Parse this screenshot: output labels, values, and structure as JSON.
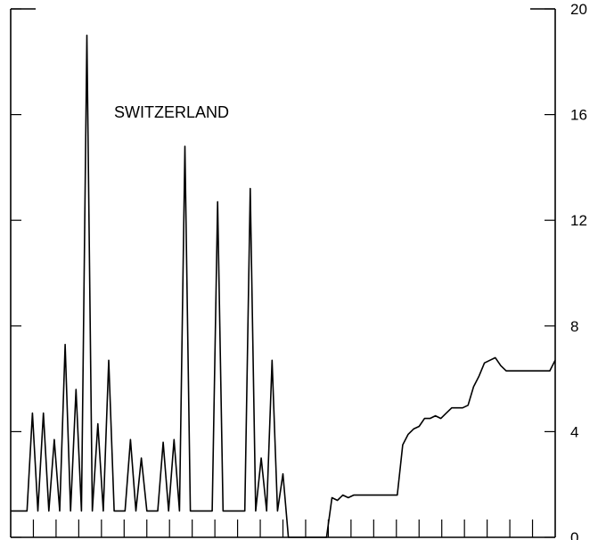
{
  "chart_data": {
    "type": "line",
    "annotation": "SWITZERLAND",
    "xlabel": "",
    "ylabel": "",
    "ylim": [
      0,
      20
    ],
    "yticks": [
      0,
      4,
      8,
      12,
      16,
      20
    ],
    "ytick_labels": [
      "0",
      "4",
      "8",
      "12",
      "16",
      "20"
    ],
    "y_axis_side": "right",
    "x_tick_count": 24,
    "grid": false,
    "series": [
      {
        "x": [
          0,
          3,
          4,
          5,
          6,
          7,
          8,
          9,
          10,
          11,
          12,
          13,
          14,
          15,
          16,
          17,
          18,
          19,
          20,
          21,
          22,
          23,
          24,
          25,
          26,
          27,
          28,
          29,
          30,
          31,
          32,
          33,
          34,
          35,
          36,
          37,
          38,
          39,
          40,
          41,
          42,
          43,
          44,
          45,
          46,
          47,
          48,
          49,
          50,
          51,
          52,
          53,
          54,
          55,
          56,
          57,
          58,
          59,
          60,
          61,
          62,
          63,
          64,
          65,
          66,
          67,
          68,
          69,
          70,
          71,
          72,
          73,
          74,
          75,
          76,
          77,
          78,
          79,
          80,
          81,
          82,
          83,
          84,
          85,
          86,
          87,
          88,
          89,
          90,
          91,
          92,
          93,
          94,
          95,
          96,
          97,
          98,
          99,
          100
        ],
        "y": [
          1.0,
          1.0,
          4.7,
          1.0,
          4.7,
          1.0,
          3.7,
          1.0,
          7.3,
          1.0,
          5.6,
          1.0,
          19.0,
          1.0,
          4.3,
          1.0,
          6.7,
          1.0,
          1.0,
          1.0,
          3.7,
          1.0,
          3.0,
          1.0,
          1.0,
          1.0,
          3.6,
          1.0,
          3.7,
          1.0,
          14.8,
          1.0,
          1.0,
          1.0,
          1.0,
          1.0,
          12.7,
          1.0,
          1.0,
          1.0,
          1.0,
          1.0,
          13.2,
          1.0,
          3.0,
          1.0,
          6.7,
          1.0,
          2.4,
          0.0,
          0.0,
          0.0,
          0.0,
          0.0,
          0.0,
          0.0,
          0.0,
          1.5,
          1.4,
          1.6,
          1.5,
          1.6,
          1.6,
          1.6,
          1.6,
          1.6,
          1.6,
          1.6,
          1.6,
          1.6,
          3.5,
          3.9,
          4.1,
          4.2,
          4.5,
          4.5,
          4.6,
          4.5,
          4.7,
          4.9,
          4.9,
          4.9,
          5.0,
          5.7,
          6.1,
          6.6,
          6.7,
          6.8,
          6.5,
          6.3,
          6.3,
          6.3,
          6.3,
          6.3,
          6.3,
          6.3,
          6.3,
          6.3,
          6.7
        ]
      }
    ]
  }
}
